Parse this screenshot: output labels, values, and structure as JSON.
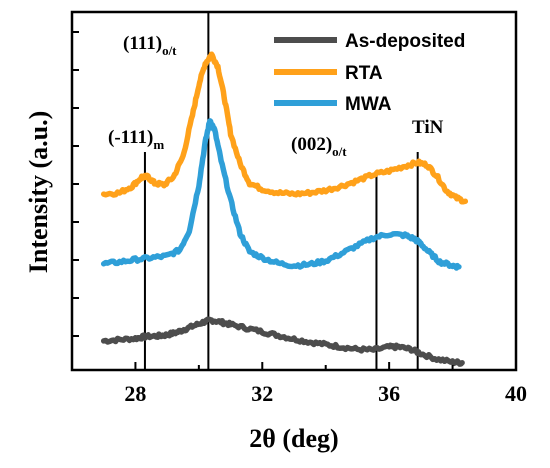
{
  "chart_data": {
    "type": "line",
    "xlabel": "2θ (deg)",
    "ylabel": "Intensity (a.u.)",
    "xlim": [
      26,
      40
    ],
    "xticks": [
      "28",
      "32",
      "36",
      "40"
    ],
    "yticks_labeled": false,
    "legend_position": "top-right",
    "series": [
      {
        "name": "As-deposited",
        "color": "#4d4d4d",
        "points": [
          [
            27.0,
            0.48
          ],
          [
            27.5,
            0.5
          ],
          [
            28.0,
            0.52
          ],
          [
            28.3,
            0.55
          ],
          [
            28.7,
            0.56
          ],
          [
            29.0,
            0.58
          ],
          [
            29.3,
            0.62
          ],
          [
            29.6,
            0.68
          ],
          [
            29.9,
            0.74
          ],
          [
            30.2,
            0.8
          ],
          [
            30.4,
            0.82
          ],
          [
            30.7,
            0.79
          ],
          [
            31.0,
            0.75
          ],
          [
            31.5,
            0.69
          ],
          [
            32.0,
            0.63
          ],
          [
            32.5,
            0.57
          ],
          [
            33.0,
            0.51
          ],
          [
            33.5,
            0.46
          ],
          [
            34.0,
            0.42
          ],
          [
            34.5,
            0.38
          ],
          [
            35.0,
            0.34
          ],
          [
            35.5,
            0.33
          ],
          [
            36.0,
            0.38
          ],
          [
            36.3,
            0.38
          ],
          [
            36.7,
            0.34
          ],
          [
            37.0,
            0.27
          ],
          [
            37.5,
            0.18
          ],
          [
            38.0,
            0.13
          ],
          [
            38.3,
            0.12
          ]
        ]
      },
      {
        "name": "RTA",
        "color": "#ffa11a",
        "points": [
          [
            27.0,
            2.9
          ],
          [
            27.5,
            2.92
          ],
          [
            27.9,
            3.03
          ],
          [
            28.2,
            3.18
          ],
          [
            28.4,
            3.18
          ],
          [
            28.6,
            3.08
          ],
          [
            28.9,
            3.05
          ],
          [
            29.2,
            3.18
          ],
          [
            29.5,
            3.52
          ],
          [
            29.8,
            4.2
          ],
          [
            30.0,
            4.7
          ],
          [
            30.2,
            5.05
          ],
          [
            30.4,
            5.2
          ],
          [
            30.6,
            5.0
          ],
          [
            30.8,
            4.5
          ],
          [
            31.0,
            3.9
          ],
          [
            31.3,
            3.4
          ],
          [
            31.6,
            3.08
          ],
          [
            32.0,
            2.98
          ],
          [
            32.5,
            2.92
          ],
          [
            33.0,
            2.9
          ],
          [
            33.5,
            2.92
          ],
          [
            34.0,
            2.96
          ],
          [
            34.5,
            3.03
          ],
          [
            35.0,
            3.12
          ],
          [
            35.5,
            3.22
          ],
          [
            36.0,
            3.28
          ],
          [
            36.5,
            3.36
          ],
          [
            36.9,
            3.42
          ],
          [
            37.2,
            3.38
          ],
          [
            37.5,
            3.2
          ],
          [
            37.8,
            2.96
          ],
          [
            38.1,
            2.84
          ],
          [
            38.4,
            2.78
          ]
        ]
      },
      {
        "name": "MWA",
        "color": "#2f9fd8",
        "points": [
          [
            27.0,
            1.75
          ],
          [
            27.5,
            1.78
          ],
          [
            28.0,
            1.82
          ],
          [
            28.5,
            1.85
          ],
          [
            29.0,
            1.88
          ],
          [
            29.4,
            1.98
          ],
          [
            29.7,
            2.3
          ],
          [
            30.0,
            3.05
          ],
          [
            30.2,
            3.75
          ],
          [
            30.35,
            4.12
          ],
          [
            30.5,
            3.95
          ],
          [
            30.7,
            3.45
          ],
          [
            31.0,
            2.8
          ],
          [
            31.3,
            2.25
          ],
          [
            31.6,
            1.95
          ],
          [
            32.0,
            1.85
          ],
          [
            32.5,
            1.76
          ],
          [
            33.0,
            1.72
          ],
          [
            33.5,
            1.74
          ],
          [
            34.0,
            1.8
          ],
          [
            34.5,
            1.92
          ],
          [
            35.0,
            2.05
          ],
          [
            35.5,
            2.18
          ],
          [
            36.0,
            2.24
          ],
          [
            36.5,
            2.22
          ],
          [
            36.8,
            2.16
          ],
          [
            37.0,
            2.08
          ],
          [
            37.3,
            1.92
          ],
          [
            37.6,
            1.78
          ],
          [
            38.0,
            1.72
          ],
          [
            38.2,
            1.7
          ]
        ]
      }
    ],
    "reference_lines": [
      {
        "x": 28.3,
        "label": "(-111)",
        "subscript": "m"
      },
      {
        "x": 30.3,
        "label": "(111)",
        "subscript": "o/t"
      },
      {
        "x": 35.6,
        "label": "(002)",
        "subscript": "o/t"
      },
      {
        "x": 36.9,
        "label": "TiN",
        "subscript": ""
      }
    ]
  }
}
